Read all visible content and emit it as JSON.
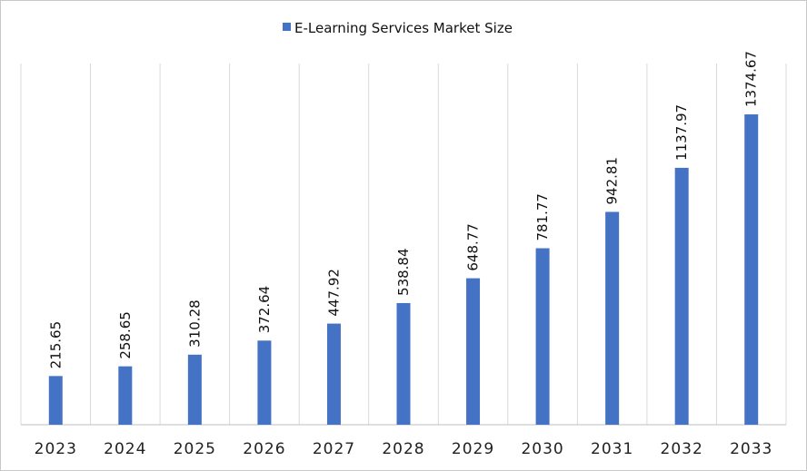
{
  "chart_data": {
    "type": "bar",
    "categories": [
      "2023",
      "2024",
      "2025",
      "2026",
      "2027",
      "2028",
      "2029",
      "2030",
      "2031",
      "2032",
      "2033"
    ],
    "series": [
      {
        "name": "E-Learning Services Market Size",
        "values": [
          215.65,
          258.65,
          310.28,
          372.64,
          447.92,
          538.84,
          648.77,
          781.77,
          942.81,
          1137.97,
          1374.67
        ],
        "labels": [
          "215.65",
          "258.65",
          "310.28",
          "372.64",
          "447.92",
          "538.84",
          "648.77",
          "781.77",
          "942.81",
          "1137.97",
          "1374.67"
        ]
      }
    ],
    "title": "",
    "xlabel": "",
    "ylabel": "",
    "ylim": [
      0,
      1600
    ],
    "grid": "vertical category separators",
    "legend_position": "top-center",
    "colors": {
      "bar": "#4472C4",
      "grid": "#d9d9d9",
      "axis": "#bfbfbf"
    }
  }
}
